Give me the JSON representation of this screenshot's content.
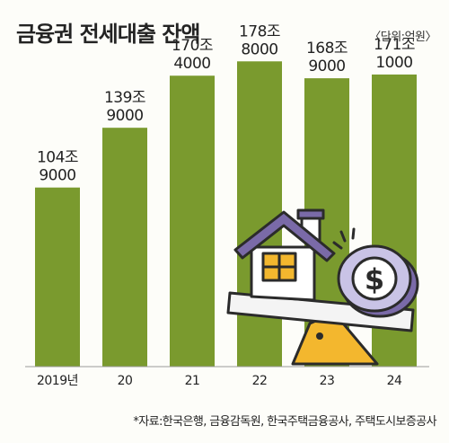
{
  "header": {
    "title": "금융권 전세대출 잔액",
    "unit": "〈단위:억원〉"
  },
  "footer": {
    "source": "*자료:한국은행, 금융감독원, 한국주택금융공사, 주택도시보증공사"
  },
  "colors": {
    "bar": "#7a9a2e",
    "axis": "#9a9a9a",
    "house_wall": "#ffffff",
    "house_roof": "#7a6aa8",
    "window": "#f3b72e",
    "coin": "#c9c3e6",
    "coin_inner": "#ffffff",
    "seesaw_base": "#f3b72e",
    "seesaw_plank": "#f4f4f4",
    "outline": "#2b2b2b"
  },
  "illustration": {
    "subject": "house-and-coin-on-seesaw",
    "coin_symbol": "$"
  },
  "chart_data": {
    "type": "bar",
    "title": "금융권 전세대출 잔액",
    "unit": "억원",
    "categories": [
      "2019년",
      "20",
      "21",
      "22",
      "23",
      "24"
    ],
    "values": [
      1049000,
      1399000,
      1704000,
      1788000,
      1689000,
      1711000
    ],
    "value_labels": [
      [
        "104조",
        "9000"
      ],
      [
        "139조",
        "9000"
      ],
      [
        "170조",
        "4000"
      ],
      [
        "178조",
        "8000"
      ],
      [
        "168조",
        "9000"
      ],
      [
        "171조",
        "1000"
      ]
    ],
    "ylim": [
      0,
      1900000
    ],
    "grid": false,
    "legend": "none"
  }
}
